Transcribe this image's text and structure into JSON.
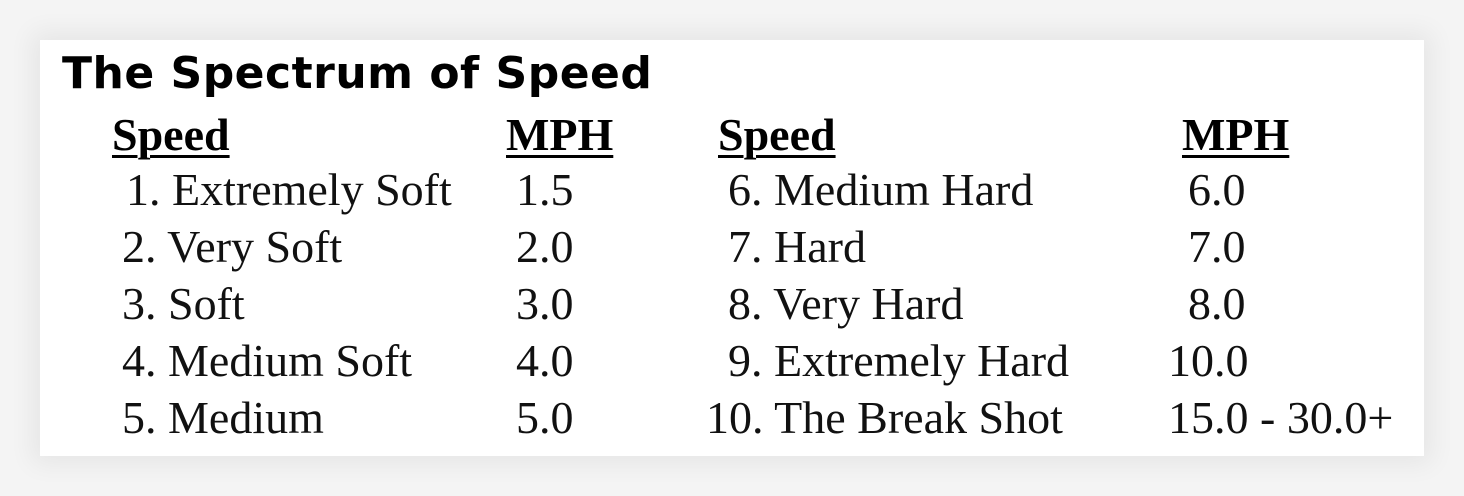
{
  "title": "The Spectrum of Speed",
  "headers": {
    "speed_left": "Speed",
    "mph_left": "MPH",
    "speed_right": "Speed",
    "mph_right": "MPH"
  },
  "left_rows": [
    {
      "speed": "1. Extremely Soft",
      "mph": "1.5"
    },
    {
      "speed": "2. Very Soft",
      "mph": "2.0"
    },
    {
      "speed": "3. Soft",
      "mph": "3.0"
    },
    {
      "speed": "4. Medium Soft",
      "mph": "4.0"
    },
    {
      "speed": "5. Medium",
      "mph": "5.0"
    }
  ],
  "right_rows": [
    {
      "speed": "6. Medium Hard",
      "mph": "6.0"
    },
    {
      "speed": "7. Hard",
      "mph": "7.0"
    },
    {
      "speed": "8. Very Hard",
      "mph": "8.0"
    },
    {
      "speed": "9. Extremely Hard",
      "mph": "10.0"
    },
    {
      "speed": "10. The Break Shot",
      "mph": "15.0 - 30.0+"
    }
  ]
}
